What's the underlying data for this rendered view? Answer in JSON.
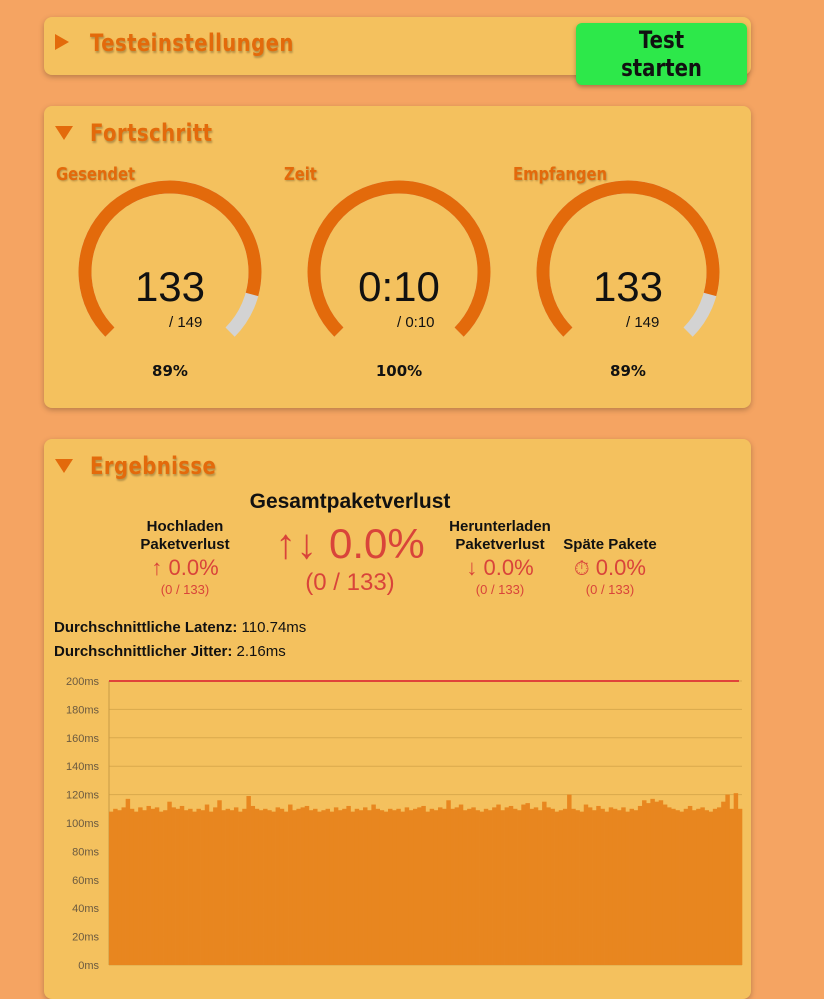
{
  "settings": {
    "title": "Testeinstellungen",
    "start_label": "Test starten"
  },
  "progress": {
    "title": "Fortschritt",
    "gauges": [
      {
        "label": "Gesendet",
        "value": "133",
        "total": "/ 149",
        "percent_text": "89%",
        "fraction": 0.89
      },
      {
        "label": "Zeit",
        "value": "0:10",
        "total": "/ 0:10",
        "percent_text": "100%",
        "fraction": 1.0
      },
      {
        "label": "Empfangen",
        "value": "133",
        "total": "/ 149",
        "percent_text": "89%",
        "fraction": 0.89
      }
    ],
    "colors": {
      "fill": "#e36a0b",
      "track": "#d3d3d3"
    }
  },
  "results": {
    "title": "Ergebnisse",
    "total_loss": {
      "title": "Gesamtpaketverlust",
      "icon": "up-down-arrows-icon",
      "arrows": "↑↓",
      "value": "0.0%",
      "count": "(0 / 133)"
    },
    "upload_loss": {
      "title_line1": "Hochladen",
      "title_line2": "Paketverlust",
      "icon": "up-arrow-icon",
      "arrow": "↑",
      "value": "0.0%",
      "count": "(0 / 133)"
    },
    "download_loss": {
      "title_line1": "Herunterladen",
      "title_line2": "Paketverlust",
      "icon": "down-arrow-icon",
      "arrow": "↓",
      "value": "0.0%",
      "count": "(0 / 133)"
    },
    "late_packets": {
      "title": "Späte Pakete",
      "icon": "stopwatch-icon",
      "glyph": "⏱",
      "value": "0.0%",
      "count": "(0 / 133)"
    },
    "avg_latency": {
      "label": "Durchschnittliche Latenz:",
      "value": "110.74ms"
    },
    "avg_jitter": {
      "label": "Durchschnittlicher Jitter:",
      "value": "2.16ms"
    }
  },
  "chart_data": {
    "type": "bar",
    "ylabel": "",
    "xlabel": "",
    "ylim": [
      0,
      200
    ],
    "yticks": [
      "0ms",
      "20ms",
      "40ms",
      "60ms",
      "80ms",
      "100ms",
      "120ms",
      "140ms",
      "160ms",
      "180ms",
      "200ms"
    ],
    "grid": true,
    "bar_color": "#e8861f",
    "threshold": {
      "value": 200,
      "color": "#e0433a"
    },
    "values": [
      108,
      110,
      109,
      111,
      117,
      110,
      108,
      111,
      109,
      112,
      110,
      111,
      108,
      109,
      115,
      111,
      110,
      112,
      109,
      110,
      108,
      110,
      109,
      113,
      108,
      111,
      116,
      109,
      110,
      109,
      111,
      108,
      110,
      119,
      112,
      110,
      109,
      110,
      109,
      108,
      111,
      110,
      108,
      113,
      109,
      110,
      111,
      112,
      109,
      110,
      108,
      109,
      110,
      108,
      111,
      109,
      110,
      112,
      108,
      110,
      109,
      111,
      109,
      113,
      110,
      109,
      108,
      110,
      109,
      110,
      108,
      111,
      109,
      110,
      111,
      112,
      108,
      110,
      109,
      111,
      110,
      116,
      110,
      111,
      113,
      109,
      110,
      111,
      109,
      108,
      110,
      109,
      111,
      113,
      109,
      111,
      112,
      110,
      109,
      113,
      114,
      110,
      111,
      109,
      115,
      111,
      110,
      108,
      109,
      110,
      120,
      110,
      109,
      108,
      113,
      111,
      109,
      112,
      110,
      108,
      111,
      110,
      109,
      111,
      108,
      110,
      109,
      112,
      116,
      114,
      117,
      115,
      116,
      113,
      111,
      110,
      109,
      108,
      110,
      112,
      109,
      110,
      111,
      109,
      108,
      110,
      111,
      115,
      120,
      110,
      121,
      110
    ]
  }
}
